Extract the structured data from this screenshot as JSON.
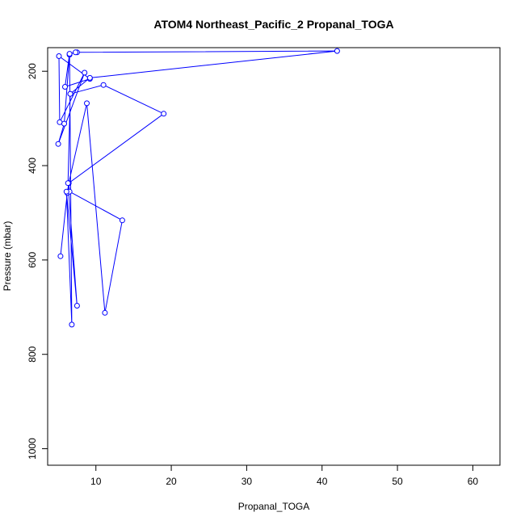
{
  "chart_data": {
    "type": "line",
    "title": "ATOM4 Northeast_Pacific_2 Propanal_TOGA",
    "xlabel": "Propanal_TOGA",
    "ylabel": "Pressure (mbar)",
    "xlim": [
      3.6,
      63.6
    ],
    "ylim": [
      1035,
      150
    ],
    "y_reversed": true,
    "x_ticks": [
      "10",
      "20",
      "30",
      "40",
      "50",
      "60"
    ],
    "x_tick_values": [
      10,
      20,
      30,
      40,
      50,
      60
    ],
    "y_ticks": [
      "200",
      "400",
      "600",
      "800",
      "1000"
    ],
    "y_tick_values": [
      200,
      400,
      600,
      800,
      1000
    ],
    "grid": false,
    "legend": "none",
    "series": [
      {
        "color": "#0000ff",
        "marker": "open-circle",
        "points": [
          [
            5.3,
            592
          ],
          [
            6.2,
            458
          ],
          [
            6.4,
            437
          ],
          [
            8.8,
            268
          ],
          [
            11.2,
            712
          ],
          [
            13.5,
            516
          ],
          [
            6.5,
            455
          ],
          [
            6.4,
            437
          ],
          [
            19.0,
            290
          ],
          [
            11.0,
            229
          ],
          [
            6.6,
            248
          ],
          [
            6.3,
            437
          ],
          [
            7.5,
            697
          ],
          [
            6.1,
            455
          ],
          [
            6.8,
            737
          ],
          [
            6.5,
            165
          ],
          [
            5.8,
            311
          ],
          [
            5.0,
            354
          ],
          [
            8.5,
            203
          ],
          [
            5.2,
            308
          ],
          [
            5.1,
            168
          ],
          [
            9.2,
            216
          ],
          [
            5.9,
            233
          ],
          [
            6.5,
            163
          ],
          [
            7.5,
            160
          ],
          [
            7.3,
            160
          ],
          [
            42,
            157
          ],
          [
            9.2,
            214
          ],
          [
            6.6,
            248
          ]
        ]
      }
    ]
  }
}
